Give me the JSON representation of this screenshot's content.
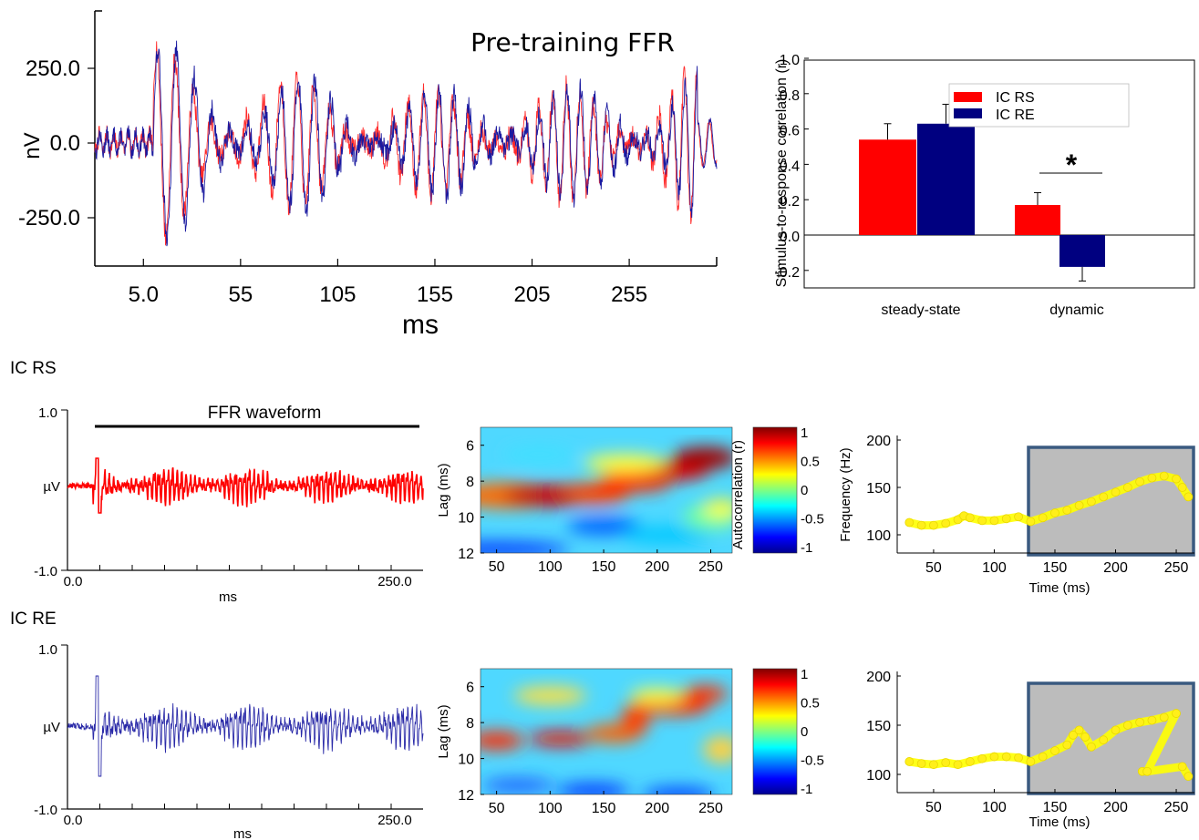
{
  "chart_data": [
    {
      "id": "pretraining",
      "type": "line",
      "title": "Pre-training FFR",
      "xlabel": "ms",
      "ylabel": "nV",
      "xlim": [
        -20,
        300
      ],
      "ylim": [
        -400,
        400
      ],
      "xticks": [
        5,
        55,
        105,
        155,
        205,
        255
      ],
      "xtick_labels": [
        "5.0",
        "55",
        "105",
        "155",
        "205",
        "255"
      ],
      "yticks": [
        250,
        0,
        -250
      ],
      "ytick_labels": [
        "250.0",
        "0.0",
        "-250.0"
      ],
      "series": [
        {
          "name": "IC RS",
          "color": "#ff0000"
        },
        {
          "name": "IC RE",
          "color": "#1a1aa0"
        }
      ]
    },
    {
      "id": "correlation",
      "type": "bar",
      "ylabel": "Stimulus-to-response correlation (r)",
      "categories": [
        "steady-state",
        "dynamic"
      ],
      "ylim": [
        -0.25,
        1.0
      ],
      "yticks": [
        "1.0",
        "0.8",
        "0.6",
        "0.4",
        "0.2",
        "0.0",
        "-0.2"
      ],
      "series": [
        {
          "name": "IC RS",
          "color": "#ff0000",
          "values": [
            0.54,
            0.17
          ],
          "errors": [
            0.09,
            0.07
          ]
        },
        {
          "name": "IC RE",
          "color": "#000080",
          "values": [
            0.63,
            -0.18
          ],
          "errors": [
            0.11,
            0.08
          ]
        }
      ],
      "legend": "top-right",
      "annotation": "*"
    },
    {
      "id": "rs_waveform",
      "type": "line",
      "group_label": "IC RS",
      "annotation": "FFR waveform",
      "xlabel": "ms",
      "ylabel": "µV",
      "xlim": [
        0,
        250
      ],
      "ylim": [
        -1,
        1
      ],
      "xtick_labels": [
        "0.0",
        "250.0"
      ],
      "ytick_labels": [
        "1.0",
        "-1.0"
      ],
      "color": "#ff0000"
    },
    {
      "id": "rs_autocorr",
      "type": "heatmap",
      "xlabel": "",
      "ylabel": "Lag (ms)",
      "xticks": [
        50,
        100,
        150,
        200,
        250
      ],
      "yticks": [
        6,
        8,
        10,
        12
      ],
      "colorbar_label": "Autocorrelation (r)",
      "colorbar_ticks": [
        "1",
        "0.5",
        "0",
        "-0.5",
        "-1"
      ]
    },
    {
      "id": "rs_pitch",
      "type": "scatter",
      "xlabel": "Time (ms)",
      "ylabel": "Frequency (Hz)",
      "xticks": [
        50,
        100,
        150,
        200,
        250
      ],
      "yticks": [
        200,
        150,
        100
      ],
      "x": [
        30,
        40,
        50,
        60,
        70,
        75,
        80,
        90,
        100,
        110,
        120,
        130,
        140,
        150,
        160,
        170,
        180,
        190,
        200,
        210,
        220,
        230,
        240,
        250,
        255,
        260
      ],
      "y": [
        113,
        110,
        110,
        112,
        116,
        120,
        118,
        115,
        115,
        117,
        119,
        114,
        118,
        123,
        126,
        131,
        135,
        140,
        145,
        150,
        156,
        160,
        162,
        159,
        150,
        140
      ],
      "highlight_range": [
        130,
        265
      ]
    },
    {
      "id": "re_waveform",
      "type": "line",
      "group_label": "IC RE",
      "xlabel": "ms",
      "ylabel": "µV",
      "xlim": [
        0,
        250
      ],
      "ylim": [
        -1,
        1
      ],
      "xtick_labels": [
        "0.0",
        "250.0"
      ],
      "ytick_labels": [
        "1.0",
        "-1.0"
      ],
      "color": "#1a1aa0"
    },
    {
      "id": "re_autocorr",
      "type": "heatmap",
      "xlabel": "",
      "ylabel": "Lag (ms)",
      "xticks": [
        50,
        100,
        150,
        200,
        250
      ],
      "yticks": [
        6,
        8,
        10,
        12
      ],
      "colorbar_ticks": [
        "1",
        "0.5",
        "0",
        "-0.5",
        "-1"
      ]
    },
    {
      "id": "re_pitch",
      "type": "scatter",
      "xlabel": "Time (ms)",
      "ylabel": "",
      "xticks": [
        50,
        100,
        150,
        200,
        250
      ],
      "yticks": [
        200,
        150,
        100
      ],
      "x": [
        30,
        40,
        50,
        60,
        70,
        80,
        90,
        100,
        110,
        120,
        130,
        140,
        150,
        160,
        165,
        170,
        175,
        180,
        190,
        200,
        210,
        220,
        230,
        240,
        250,
        222,
        226,
        255,
        260
      ],
      "y": [
        113,
        111,
        110,
        112,
        110,
        113,
        116,
        118,
        118,
        117,
        113,
        118,
        124,
        130,
        140,
        145,
        138,
        128,
        135,
        145,
        150,
        153,
        155,
        158,
        162,
        103,
        103,
        108,
        98
      ],
      "highlight_range": [
        130,
        265
      ]
    }
  ]
}
